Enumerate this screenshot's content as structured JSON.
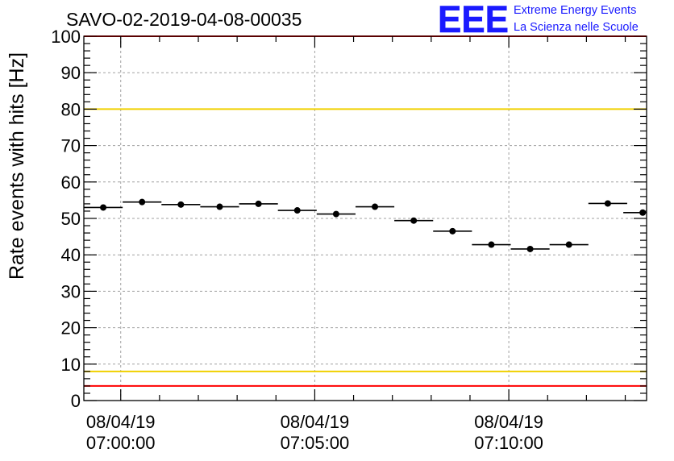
{
  "header": {
    "run_id": "SAVO-02-2019-04-08-00035",
    "logo_letters": "EEE",
    "logo_line1": "Extreme Energy Events",
    "logo_line2": "La Scienza nelle Scuole"
  },
  "colors": {
    "red_line": "#ff0000",
    "yellow_line": "#f0d000",
    "grid": "#a0a0a0",
    "markers": "#000000",
    "logo": "#1a1aff"
  },
  "chart_data": {
    "type": "scatter",
    "title": "SAVO-02-2019-04-08-00035",
    "ylabel": "Rate events with hits [Hz]",
    "xlabel": "",
    "ylim": [
      0,
      100
    ],
    "yticks": [
      0,
      10,
      20,
      30,
      40,
      50,
      60,
      70,
      80,
      90,
      100
    ],
    "xlim_minutes": [
      -0.95,
      13.55
    ],
    "xticks": [
      {
        "minute": 0,
        "date": "08/04/19",
        "time": "07:00:00"
      },
      {
        "minute": 5,
        "date": "08/04/19",
        "time": "07:05:00"
      },
      {
        "minute": 10,
        "date": "08/04/19",
        "time": "07:10:00"
      }
    ],
    "bin_width_minutes": 1,
    "series": [
      {
        "points": [
          {
            "minute": -0.45,
            "rate": 53.0
          },
          {
            "minute": 0.55,
            "rate": 54.5
          },
          {
            "minute": 1.55,
            "rate": 53.8
          },
          {
            "minute": 2.55,
            "rate": 53.2
          },
          {
            "minute": 3.55,
            "rate": 54.0
          },
          {
            "minute": 4.55,
            "rate": 52.2
          },
          {
            "minute": 5.55,
            "rate": 51.2
          },
          {
            "minute": 6.55,
            "rate": 53.2
          },
          {
            "minute": 7.55,
            "rate": 49.4
          },
          {
            "minute": 8.55,
            "rate": 46.5
          },
          {
            "minute": 9.55,
            "rate": 42.8
          },
          {
            "minute": 10.55,
            "rate": 41.6
          },
          {
            "minute": 11.55,
            "rate": 42.8
          },
          {
            "minute": 12.55,
            "rate": 54.1
          },
          {
            "minute": 13.45,
            "rate": 51.6
          }
        ]
      }
    ],
    "reference_lines": [
      {
        "y": 100,
        "color": "red"
      },
      {
        "y": 80,
        "color": "yellow"
      },
      {
        "y": 8,
        "color": "yellow"
      },
      {
        "y": 4,
        "color": "red"
      }
    ],
    "grid": true
  }
}
